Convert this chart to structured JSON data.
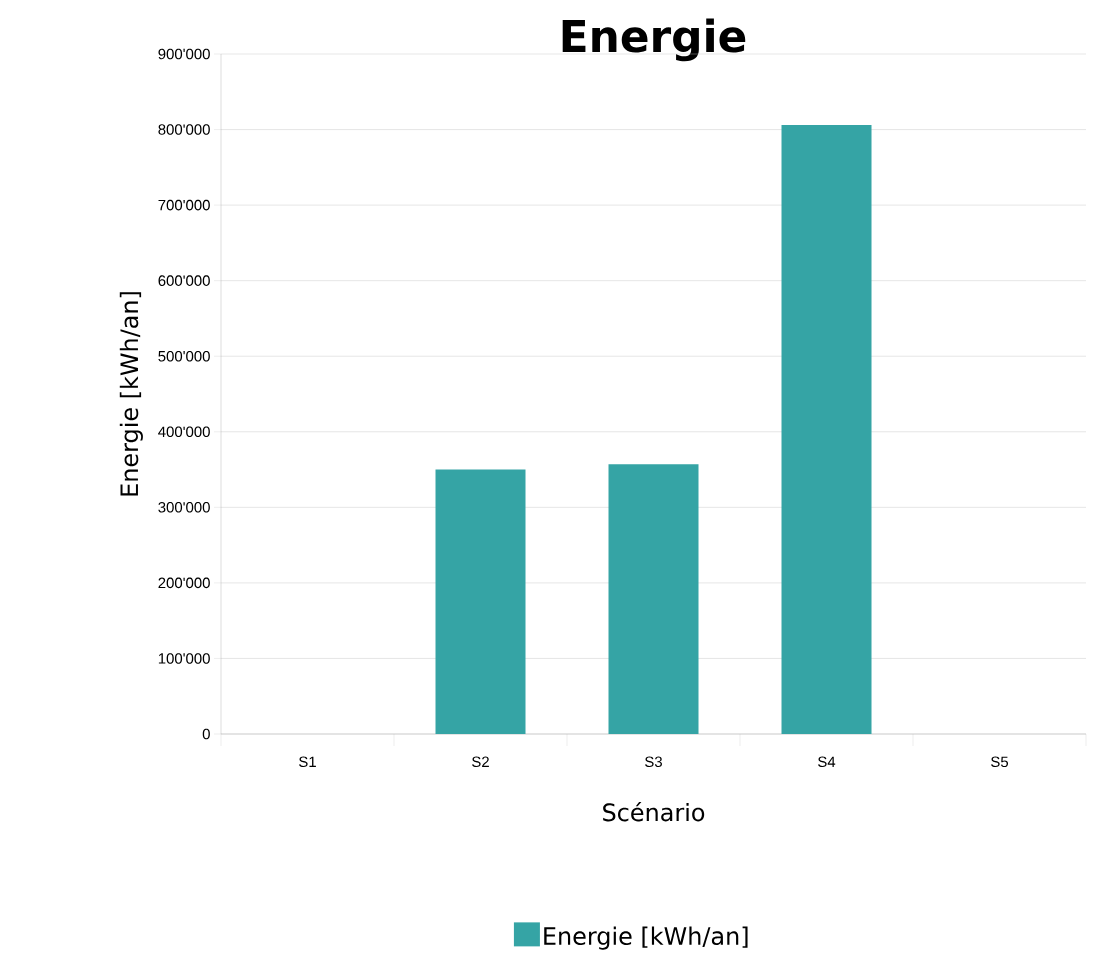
{
  "chart_data": {
    "type": "bar",
    "title": "Energie",
    "xlabel": "Scénario",
    "ylabel": "Energie [kWh/an]",
    "categories": [
      "S1",
      "S2",
      "S3",
      "S4",
      "S5"
    ],
    "series": [
      {
        "name": "Energie [kWh/an]",
        "color": "#35a4a5",
        "values": [
          null,
          350000,
          357000,
          806000,
          null
        ]
      }
    ],
    "ylim": [
      0,
      900000
    ],
    "yticks": [
      {
        "value": 0,
        "label": "0"
      },
      {
        "value": 100000,
        "label": "100'000"
      },
      {
        "value": 200000,
        "label": "200'000"
      },
      {
        "value": 300000,
        "label": "300'000"
      },
      {
        "value": 400000,
        "label": "400'000"
      },
      {
        "value": 500000,
        "label": "500'000"
      },
      {
        "value": 600000,
        "label": "600'000"
      },
      {
        "value": 700000,
        "label": "700'000"
      },
      {
        "value": 800000,
        "label": "800'000"
      },
      {
        "value": 900000,
        "label": "900'000"
      }
    ],
    "grid": "y",
    "legend": "bottom"
  }
}
